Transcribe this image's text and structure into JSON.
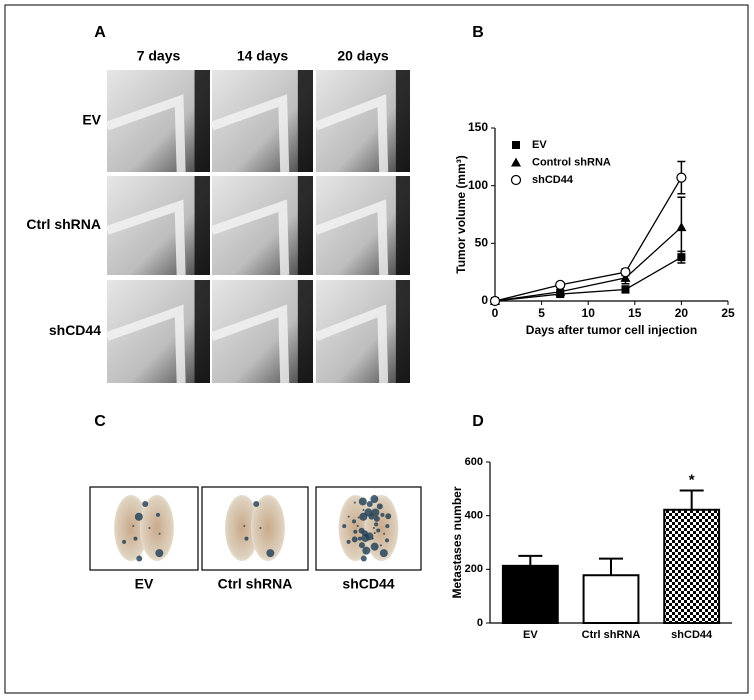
{
  "panel_a": {
    "label": "A",
    "columns": [
      "7 days",
      "14 days",
      "20 days"
    ],
    "rows": [
      "EV",
      "Ctrl shRNA",
      "shCD44"
    ]
  },
  "panel_c": {
    "label": "C",
    "images": [
      "EV",
      "Ctrl shRNA",
      "shCD44"
    ]
  },
  "chart_data": [
    {
      "type": "line",
      "panel": "B",
      "x_label": "Days after tumor cell injection",
      "y_label": "Tumor volume (mm³)",
      "xlim": [
        0,
        25
      ],
      "xticks": [
        0,
        5,
        10,
        15,
        20,
        25
      ],
      "ylim": [
        0,
        150
      ],
      "yticks": [
        0,
        50,
        100,
        150
      ],
      "series": [
        {
          "name": "EV",
          "color": "#000000",
          "marker": "square",
          "x": [
            0,
            7,
            14,
            20
          ],
          "values": [
            0,
            6,
            10,
            38
          ],
          "errors": [
            0,
            2,
            3,
            5
          ]
        },
        {
          "name": "Control shRNA",
          "color": "#000000",
          "marker": "triangle",
          "x": [
            0,
            7,
            14,
            20
          ],
          "values": [
            0,
            8,
            20,
            64
          ],
          "errors": [
            0,
            2,
            5,
            26
          ]
        },
        {
          "name": "shCD44",
          "color": "#000000",
          "marker": "circle",
          "x": [
            0,
            7,
            14,
            20
          ],
          "values": [
            0,
            14,
            25,
            107
          ],
          "errors": [
            0,
            2,
            3,
            14
          ]
        }
      ]
    },
    {
      "type": "bar",
      "panel": "D",
      "y_label": "Metastases number",
      "ylim": [
        0,
        600
      ],
      "yticks": [
        0,
        200,
        400,
        600
      ],
      "categories": [
        "EV",
        "Ctrl shRNA",
        "shCD44"
      ],
      "values": [
        213,
        178,
        422
      ],
      "errors": [
        37,
        62,
        72
      ],
      "fills": [
        "#000000",
        "#ffffff",
        "checker"
      ],
      "annotation": {
        "text": "*",
        "category": "shCD44"
      }
    }
  ]
}
